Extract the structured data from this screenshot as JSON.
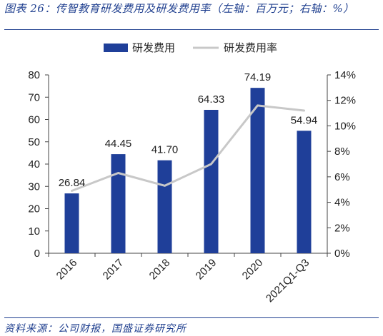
{
  "figure": {
    "title": "图表 26：传智教育研发费用及研发费用率（左轴：百万元；右轴：%）",
    "source": "资料来源：公司财报，国盛证券研究所"
  },
  "colors": {
    "bar": "#1f3f99",
    "line": "#c8c8c8",
    "axis": "#444444",
    "title": "#1f3f8f"
  },
  "chart_data": {
    "type": "bar",
    "categories": [
      "2016",
      "2017",
      "2018",
      "2019",
      "2020",
      "2021Q1-Q3"
    ],
    "series": [
      {
        "name": "研发费用",
        "type": "bar",
        "axis": "left",
        "values": [
          26.84,
          44.45,
          41.7,
          64.33,
          74.19,
          54.94
        ],
        "labels": [
          "26.84",
          "44.45",
          "41.70",
          "64.33",
          "74.19",
          "54.94"
        ]
      },
      {
        "name": "研发费用率",
        "type": "line",
        "axis": "right",
        "values": [
          4.9,
          6.3,
          5.3,
          7.0,
          11.6,
          11.2
        ]
      }
    ],
    "ylim_left": [
      0,
      80
    ],
    "yticks_left": [
      0,
      10,
      20,
      30,
      40,
      50,
      60,
      70,
      80
    ],
    "ylim_right": [
      0,
      14
    ],
    "yticks_right": [
      "0%",
      "2%",
      "4%",
      "6%",
      "8%",
      "10%",
      "12%",
      "14%"
    ],
    "legend": "top-center",
    "grid": false
  }
}
